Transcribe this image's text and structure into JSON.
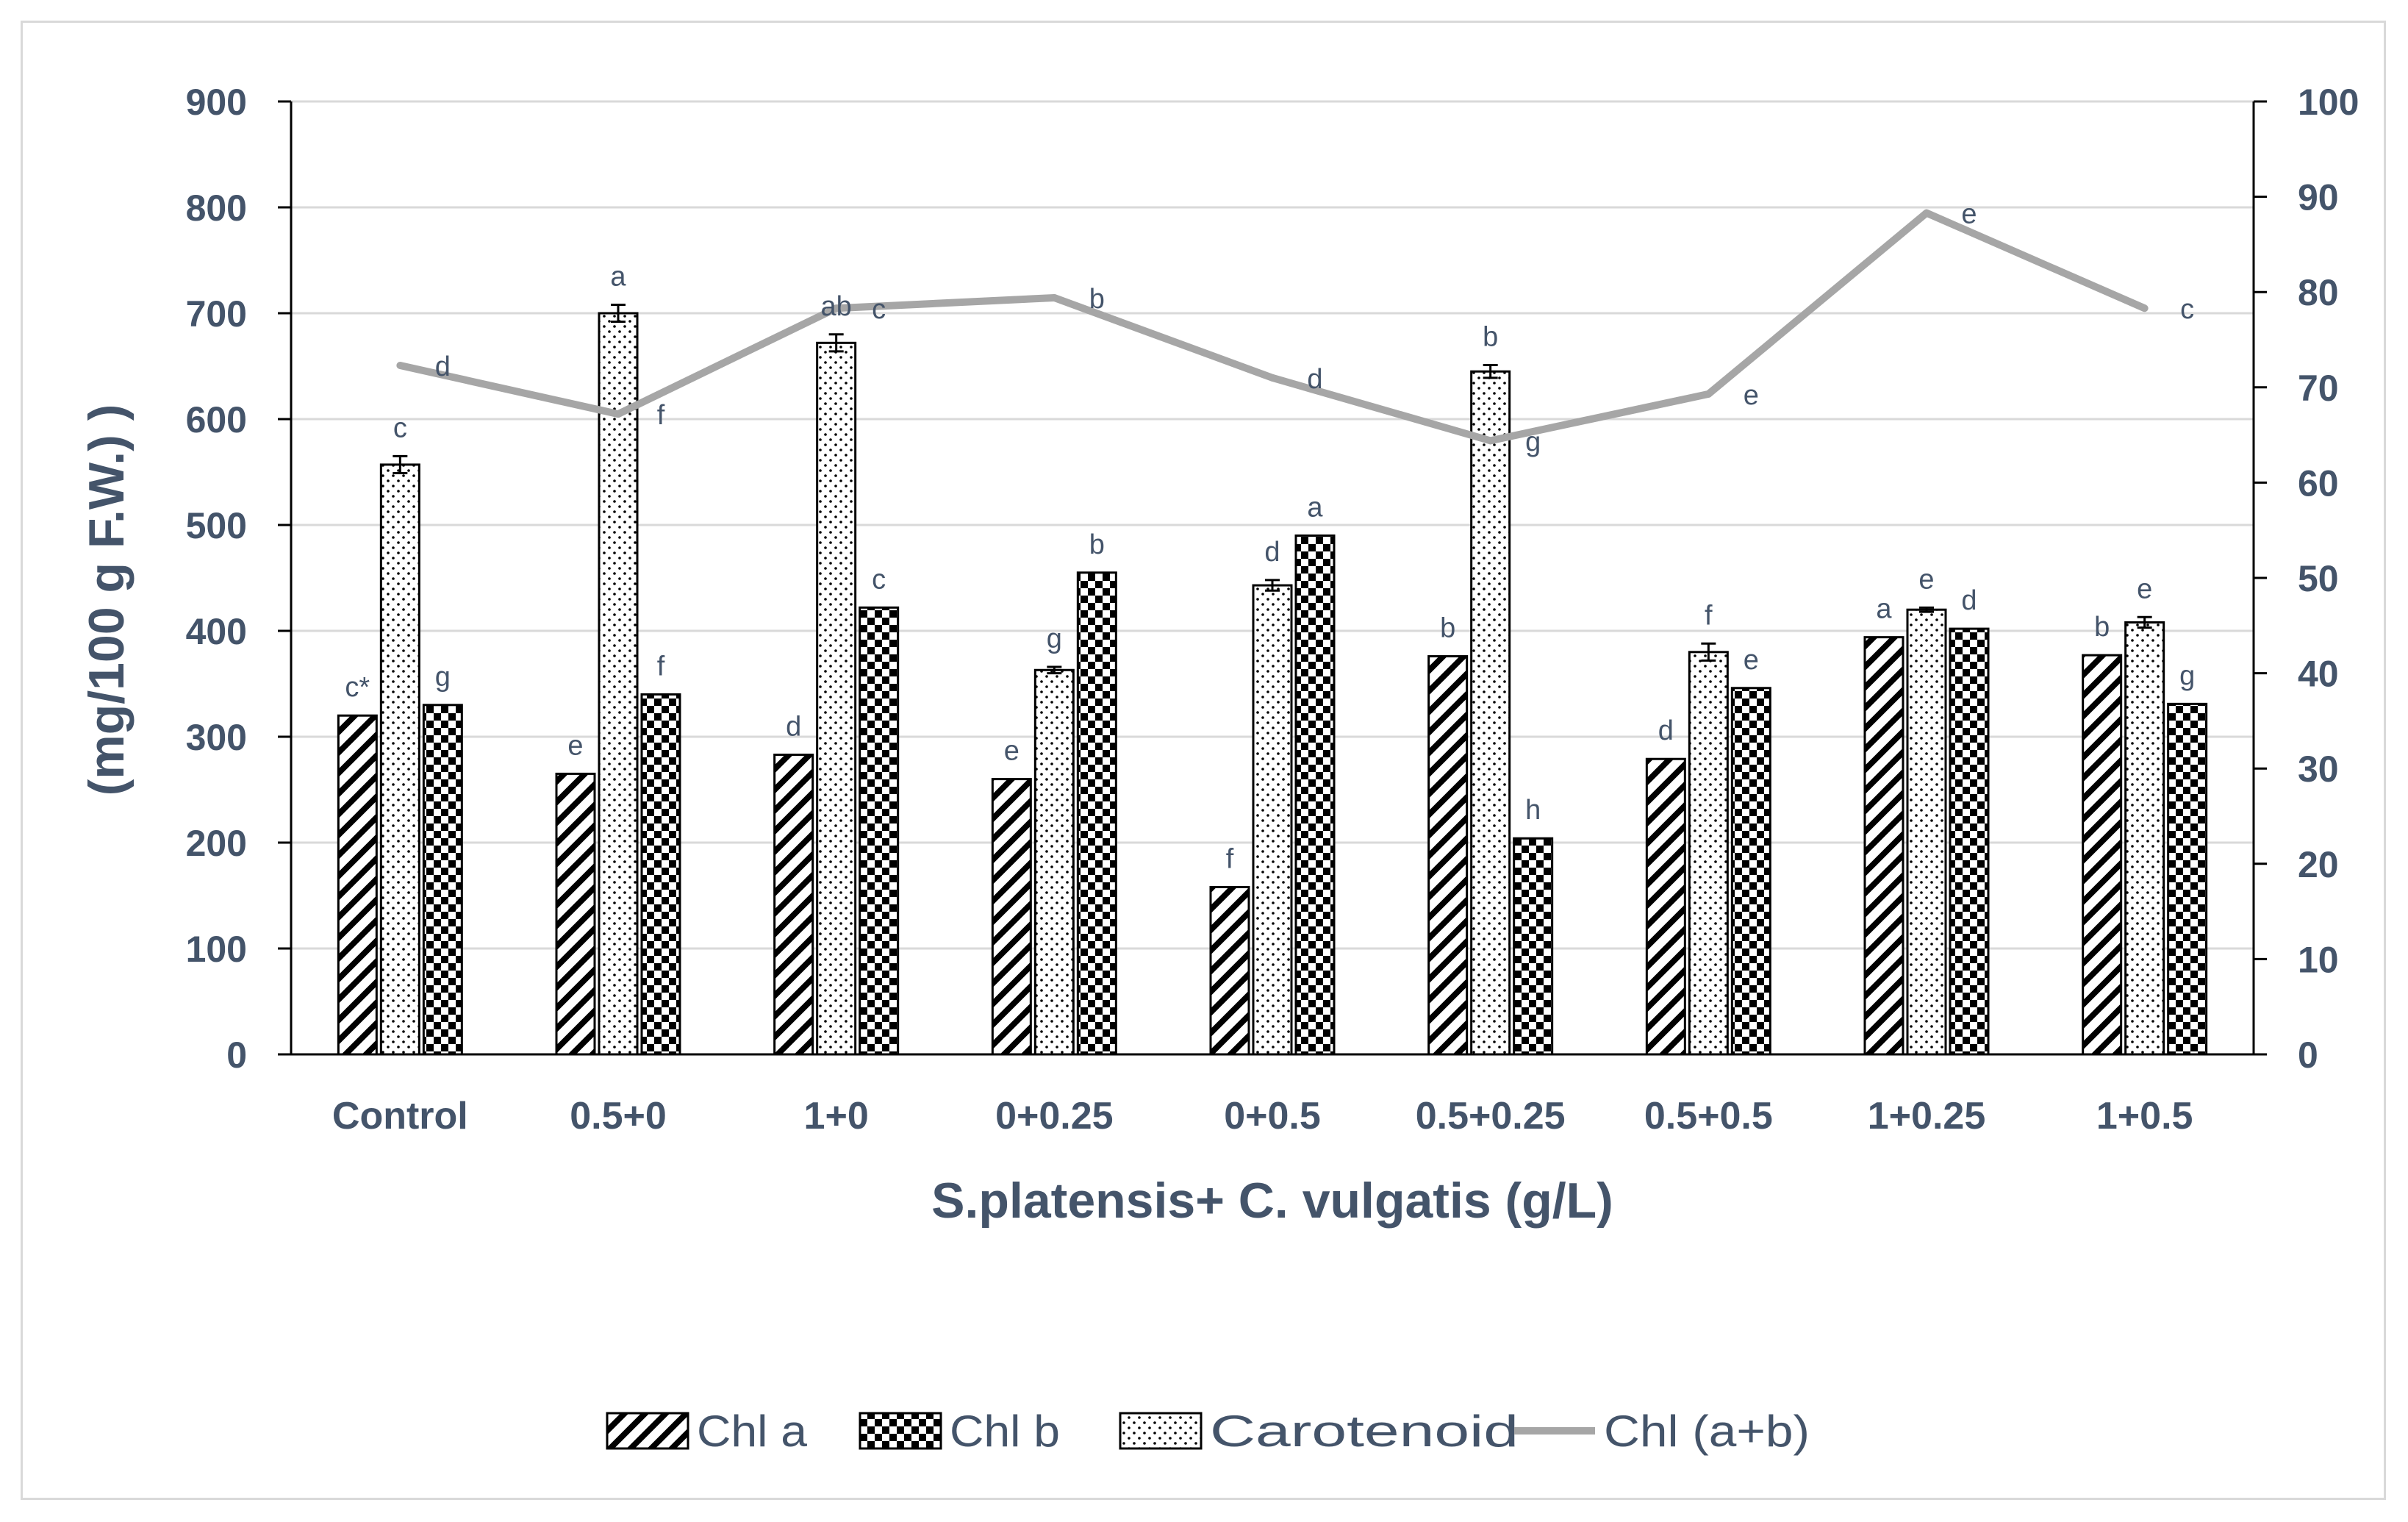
{
  "chart_data": {
    "type": "bar",
    "title": "",
    "xlabel": "S.platensis+ C. vulgatis (g/L)",
    "ylabel": "(mg/100 g F.W.)   )",
    "ylim": [
      0,
      900
    ],
    "y_ticks": [
      0,
      100,
      200,
      300,
      400,
      500,
      600,
      700,
      800,
      900
    ],
    "y2lim": [
      0,
      100
    ],
    "y2_ticks": [
      0,
      10,
      20,
      30,
      40,
      50,
      60,
      70,
      80,
      90,
      100
    ],
    "categories": [
      "Control",
      "0.5+0",
      "1+0",
      "0+0.25",
      "0+0.5",
      "0.5+0.25",
      "0.5+0.5",
      "1+0.25",
      "1+0.5"
    ],
    "series": [
      {
        "name": "Chl a",
        "type": "bar",
        "axis": "left",
        "pattern": "diagonal",
        "values": [
          320,
          265,
          283,
          260,
          158,
          376,
          279,
          394,
          377
        ],
        "errors": [
          0,
          0,
          0,
          0,
          0,
          0,
          0,
          0,
          0
        ],
        "letters": [
          "c*",
          "e",
          "d",
          "e",
          "f",
          "b",
          "d",
          "a",
          "b"
        ]
      },
      {
        "name": "Carotenoid",
        "type": "bar",
        "axis": "left",
        "pattern": "dots",
        "values": [
          557,
          700,
          672,
          363,
          443,
          645,
          380,
          420,
          408
        ],
        "errors": [
          8,
          8,
          8,
          3,
          5,
          6,
          8,
          2,
          5
        ],
        "letters": [
          "c",
          "a",
          "ab",
          "g",
          "d",
          "b",
          "f",
          "e",
          "e"
        ]
      },
      {
        "name": "Chl b",
        "type": "bar",
        "axis": "left",
        "pattern": "checker",
        "values": [
          330,
          340,
          422,
          455,
          490,
          204,
          346,
          402,
          331
        ],
        "errors": [
          0,
          0,
          0,
          0,
          0,
          0,
          0,
          0,
          0
        ],
        "letters": [
          "g",
          "f",
          "c",
          "b",
          "a",
          "h",
          "e",
          "d",
          "g"
        ]
      },
      {
        "name": "Chl (a+b)",
        "type": "line",
        "axis": "right",
        "color": "#a6a6a6",
        "values": [
          72.3,
          67.2,
          78.3,
          79.4,
          71.0,
          64.4,
          69.3,
          88.3,
          78.3
        ],
        "letters": [
          "d",
          "f",
          "c",
          "b",
          "d",
          "g",
          "e",
          "e",
          "c"
        ]
      }
    ],
    "legend": {
      "position": "bottom",
      "entries": [
        "Chl a",
        "Chl b",
        "Carotenoid",
        "Chl (a+b)"
      ]
    }
  }
}
